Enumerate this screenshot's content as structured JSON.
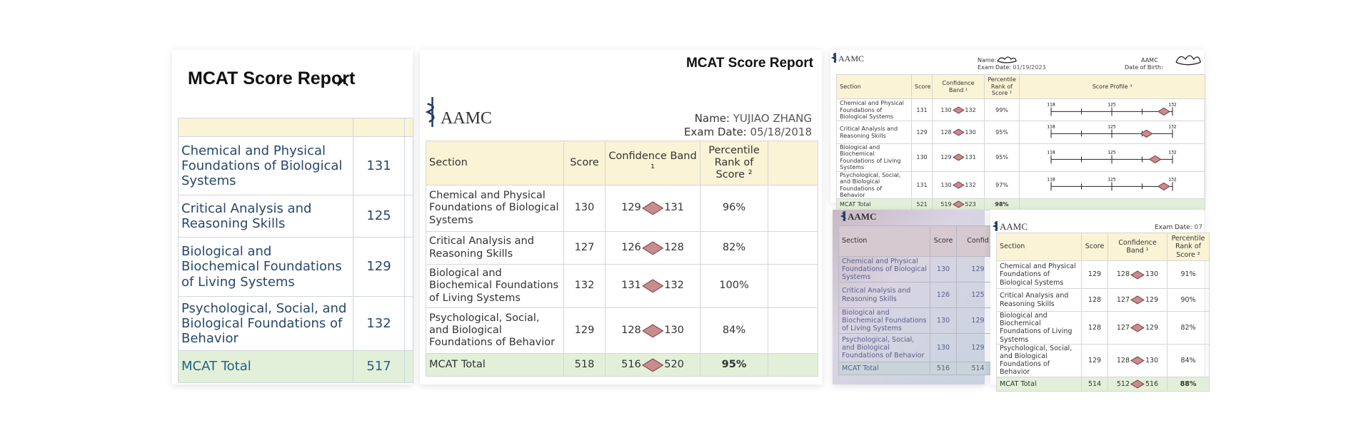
{
  "panels": [
    {
      "title": "MCAT Score Report",
      "rows": [
        {
          "section": "Chemical and Physical Foundations of Biological Systems",
          "score": 131
        },
        {
          "section": "Critical Analysis and Reasoning Skills",
          "score": 125
        },
        {
          "section": "Biological and Biochemical Foundations of Living Systems",
          "score": 129
        },
        {
          "section": "Psychological, Social, and Biological Foundations of Behavior",
          "score": 132
        }
      ],
      "total": {
        "section": "MCAT Total",
        "score": 517
      }
    },
    {
      "title": "MCAT Score Report",
      "logo": "AAMC",
      "name_label": "Name:",
      "name": "YUJIAO ZHANG",
      "date_label": "Exam Date:",
      "date": "05/18/2018",
      "headers": [
        "Section",
        "Score",
        "Confidence Band ¹",
        "Percentile Rank of Score ²"
      ],
      "rows": [
        {
          "section": "Chemical and Physical Foundations of Biological Systems",
          "score": 130,
          "band_low": 129,
          "band_high": 131,
          "percentile": "96%"
        },
        {
          "section": "Critical Analysis and Reasoning Skills",
          "score": 127,
          "band_low": 126,
          "band_high": 128,
          "percentile": "82%"
        },
        {
          "section": "Biological and Biochemical Foundations of Living Systems",
          "score": 132,
          "band_low": 131,
          "band_high": 132,
          "percentile": "100%"
        },
        {
          "section": "Psychological, Social, and Biological Foundations of Behavior",
          "score": 129,
          "band_low": 128,
          "band_high": 130,
          "percentile": "84%"
        }
      ],
      "total": {
        "section": "MCAT Total",
        "score": 518,
        "band_low": 516,
        "band_high": 520,
        "percentile": "95%"
      }
    },
    {
      "logo": "AAMC",
      "name_label": "Name:",
      "date_label": "Exam Date:",
      "date": "01/19/2023",
      "org": "AAMC",
      "dob_label": "Date of Birth:",
      "headers": [
        "Section",
        "Score",
        "Confidence Band ¹",
        "Percentile Rank of Score ²",
        "Score Profile ³"
      ],
      "profile_ticks": [
        118,
        125,
        132
      ],
      "rows": [
        {
          "section": "Chemical and Physical Foundations of Biological Systems",
          "score": 131,
          "band_low": 130,
          "band_high": 132,
          "percentile": "99%"
        },
        {
          "section": "Critical Analysis and Reasoning Skills",
          "score": 129,
          "band_low": 128,
          "band_high": 130,
          "percentile": "95%"
        },
        {
          "section": "Biological and Biochemical Foundations of Living Systems",
          "score": 130,
          "band_low": 129,
          "band_high": 131,
          "percentile": "95%"
        },
        {
          "section": "Psychological, Social, and Biological Foundations of Behavior",
          "score": 131,
          "band_low": 130,
          "band_high": 132,
          "percentile": "97%"
        }
      ],
      "total": {
        "section": "MCAT Total",
        "score": 521,
        "band_low": 519,
        "band_high": 523,
        "percentile": "98%"
      }
    },
    {
      "logo": "AAMC",
      "headers": [
        "Section",
        "Score",
        "Confid"
      ],
      "rows": [
        {
          "section": "Chemical and Physical Foundations of Biological Systems",
          "score": 130,
          "band_low": 129
        },
        {
          "section": "Critical Analysis and Reasoning Skills",
          "score": 126,
          "band_low": 125
        },
        {
          "section": "Biological and Biochemical Foundations of Living Systems",
          "score": 130,
          "band_low": 129
        },
        {
          "section": "Psychological, Social, and Biological Foundations of Behavior",
          "score": 130,
          "band_low": 129
        }
      ],
      "total": {
        "section": "MCAT Total",
        "score": 516,
        "band_low": 514
      }
    },
    {
      "logo": "AAMC",
      "date_label": "Exam Date:",
      "date": "07",
      "headers": [
        "Section",
        "Score",
        "Confidence Band ¹",
        "Percentile Rank of Score ²"
      ],
      "rows": [
        {
          "section": "Chemical and Physical Foundations of Biological Systems",
          "score": 129,
          "band_low": 128,
          "band_high": 130,
          "percentile": "91%"
        },
        {
          "section": "Critical Analysis and Reasoning Skills",
          "score": 128,
          "band_low": 127,
          "band_high": 129,
          "percentile": "90%"
        },
        {
          "section": "Biological and Biochemical Foundations of Living Systems",
          "score": 128,
          "band_low": 127,
          "band_high": 129,
          "percentile": "82%"
        },
        {
          "section": "Psychological, Social, and Biological Foundations of Behavior",
          "score": 129,
          "band_low": 128,
          "band_high": 130,
          "percentile": "84%"
        }
      ],
      "total": {
        "section": "MCAT Total",
        "score": 514,
        "band_low": 512,
        "band_high": 516,
        "percentile": "88%"
      }
    }
  ]
}
